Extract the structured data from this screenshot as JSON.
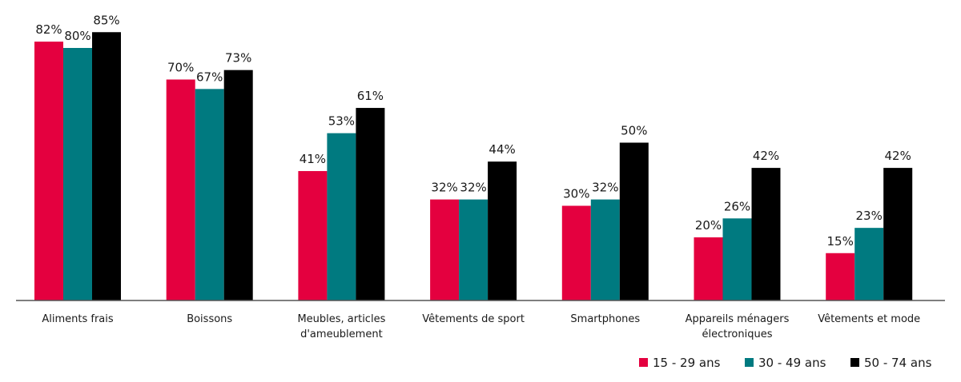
{
  "chart_data": {
    "type": "bar",
    "categories": [
      [
        "Aliments frais"
      ],
      [
        "Boissons"
      ],
      [
        "Meubles, articles",
        "d'ameublement"
      ],
      [
        "Vêtements de sport"
      ],
      [
        "Smartphones"
      ],
      [
        "Appareils ménagers",
        "électroniques"
      ],
      [
        "Vêtements et mode"
      ]
    ],
    "series": [
      {
        "name": "15 - 29 ans",
        "color": "#e4003f",
        "values": [
          82,
          70,
          41,
          32,
          30,
          20,
          15
        ]
      },
      {
        "name": "30 - 49 ans",
        "color": "#007a80",
        "values": [
          80,
          67,
          53,
          32,
          32,
          26,
          23
        ]
      },
      {
        "name": "50 - 74 ans",
        "color": "#000000",
        "values": [
          85,
          73,
          61,
          44,
          50,
          42,
          42
        ]
      }
    ],
    "value_suffix": "%",
    "ylim": [
      0,
      100
    ],
    "grid": false,
    "legend_position": "bottom-right"
  }
}
